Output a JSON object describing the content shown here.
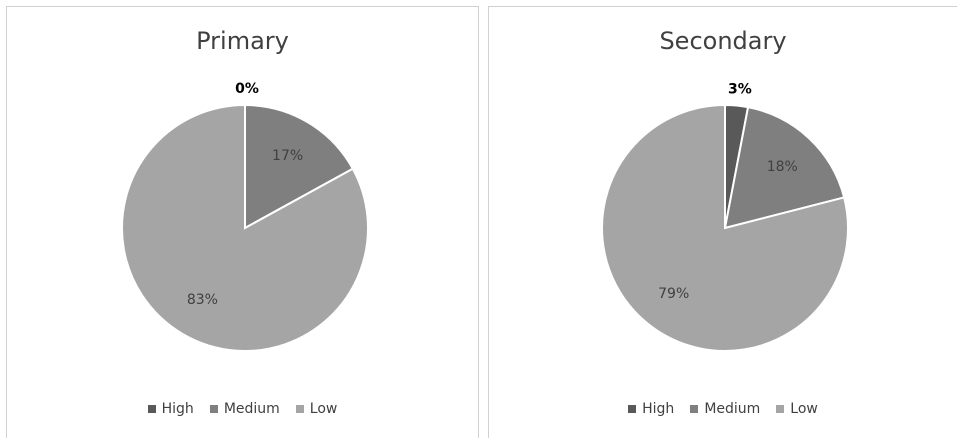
{
  "chart_data": [
    {
      "type": "pie",
      "title": "Primary",
      "categories": [
        "High",
        "Medium",
        "Low"
      ],
      "values": [
        0,
        17,
        83
      ],
      "labels": [
        "0%",
        "17%",
        "83%"
      ],
      "colors": [
        "#595959",
        "#7f7f7f",
        "#a5a5a5"
      ],
      "legend": "bottom"
    },
    {
      "type": "pie",
      "title": "Secondary",
      "categories": [
        "High",
        "Medium",
        "Low"
      ],
      "values": [
        3,
        18,
        79
      ],
      "labels": [
        "3%",
        "18%",
        "79%"
      ],
      "colors": [
        "#595959",
        "#7f7f7f",
        "#a5a5a5"
      ],
      "legend": "bottom"
    }
  ]
}
